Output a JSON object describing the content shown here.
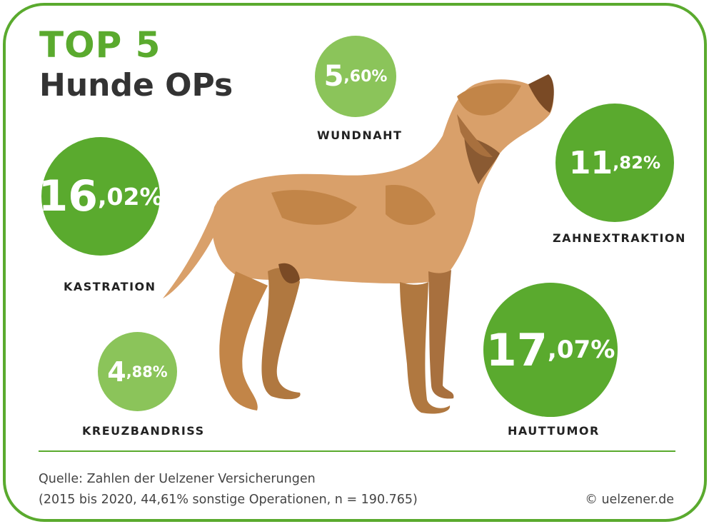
{
  "title": {
    "line1": "TOP 5",
    "line2": "Hunde OPs"
  },
  "colors": {
    "green": "#5aaa2e",
    "light_green": "#8bc45a",
    "text": "#333333"
  },
  "items": [
    {
      "label": "KASTRATION",
      "value_int": "16",
      "value_frac": ",02%",
      "value": 16.02
    },
    {
      "label": "WUNDNAHT",
      "value_int": "5",
      "value_frac": ",60%",
      "value": 5.6
    },
    {
      "label": "ZAHNEXTRAKTION",
      "value_int": "11",
      "value_frac": ",82%",
      "value": 11.82
    },
    {
      "label": "KREUZBANDRISS",
      "value_int": "4",
      "value_frac": ",88%",
      "value": 4.88
    },
    {
      "label": "HAUTTUMOR",
      "value_int": "17",
      "value_frac": ",07%",
      "value": 17.07
    }
  ],
  "source": {
    "line1": "Quelle: Zahlen der Uelzener Versicherungen",
    "line2": "(2015 bis 2020, 44,61% sonstige Operationen, n = 190.765)"
  },
  "copyright": "© uelzener.de",
  "illustration": "dog-illustration"
}
